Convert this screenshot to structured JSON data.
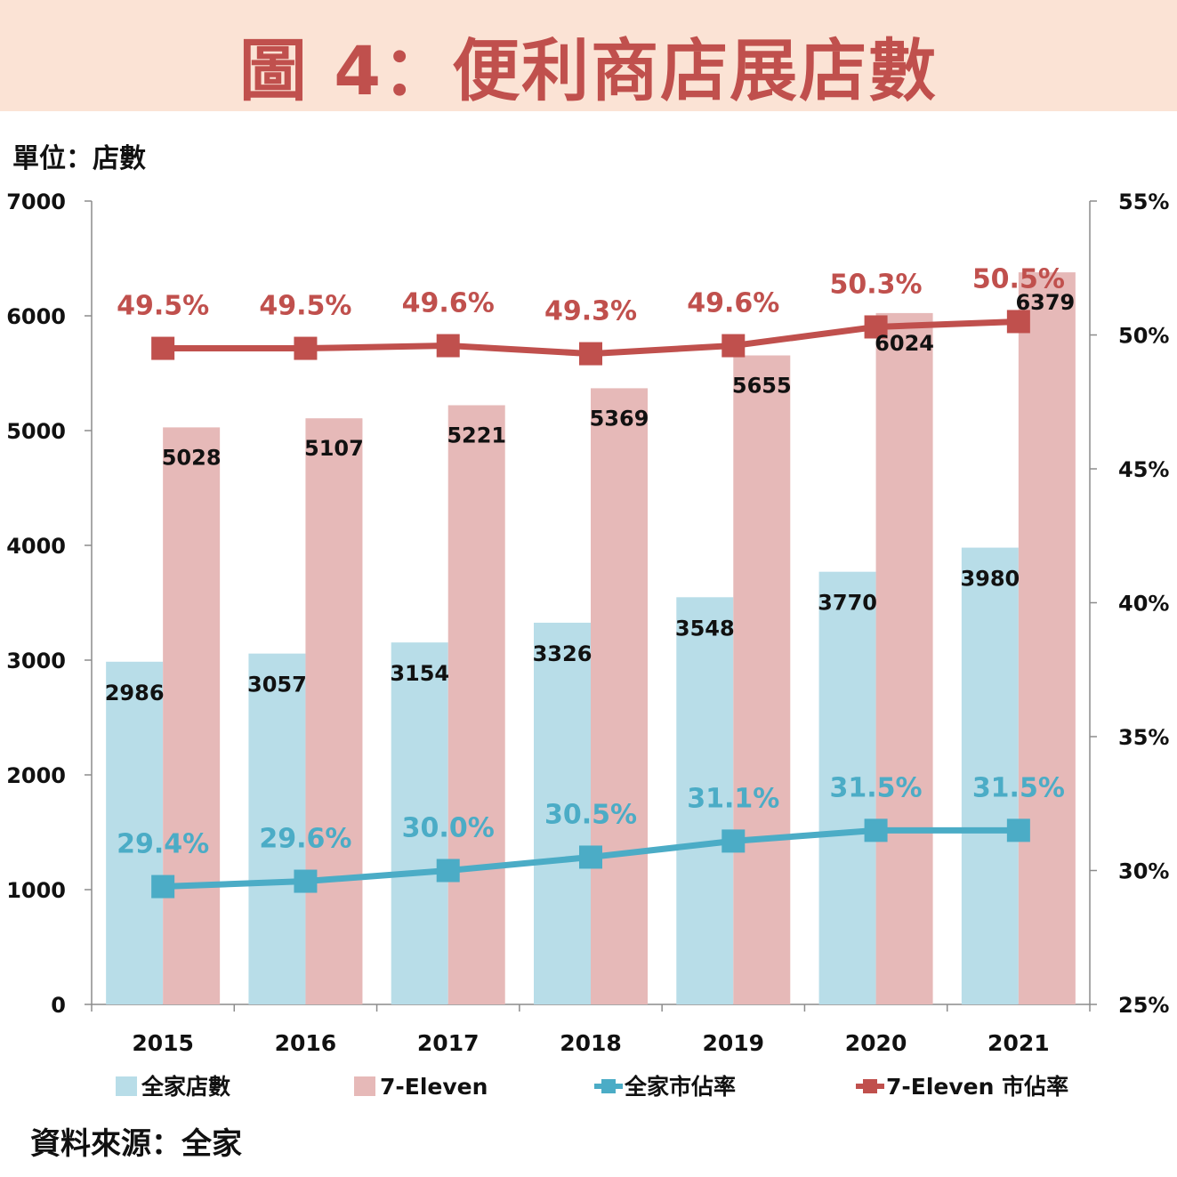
{
  "page": {
    "title": "圖 4：便利商店展店數",
    "unit_label": "單位：店數",
    "source_label": "資料來源：全家"
  },
  "chart_data": {
    "type": "bar",
    "categories": [
      "2015",
      "2016",
      "2017",
      "2018",
      "2019",
      "2020",
      "2021"
    ],
    "series": [
      {
        "name": "全家店數",
        "kind": "bar",
        "axis": "left",
        "color": "#b8dde8",
        "values": [
          2986,
          3057,
          3154,
          3326,
          3548,
          3770,
          3980
        ],
        "labels": [
          "2986",
          "3057",
          "3154",
          "3326",
          "3548",
          "3770",
          "3980"
        ]
      },
      {
        "name": "7-Eleven",
        "kind": "bar",
        "axis": "left",
        "color": "#e6b9b8",
        "values": [
          5028,
          5107,
          5221,
          5369,
          5655,
          6024,
          6379
        ],
        "labels": [
          "5028",
          "5107",
          "5221",
          "5369",
          "5655",
          "6024",
          "6379"
        ]
      },
      {
        "name": "全家市佔率",
        "kind": "line",
        "axis": "right",
        "color": "#4bacc6",
        "values": [
          29.4,
          29.6,
          30.0,
          30.5,
          31.1,
          31.5,
          31.5
        ],
        "labels": [
          "29.4%",
          "29.6%",
          "30.0%",
          "30.5%",
          "31.1%",
          "31.5%",
          "31.5%"
        ]
      },
      {
        "name": "7-Eleven 市佔率",
        "kind": "line",
        "axis": "right",
        "color": "#c0504d",
        "values": [
          49.5,
          49.5,
          49.6,
          49.3,
          49.6,
          50.3,
          50.5
        ],
        "labels": [
          "49.5%",
          "49.5%",
          "49.6%",
          "49.3%",
          "49.6%",
          "50.3%",
          "50.5%"
        ]
      }
    ],
    "y_left": {
      "min": 0,
      "max": 7000,
      "ticks": [
        "0",
        "1000",
        "2000",
        "3000",
        "4000",
        "5000",
        "6000",
        "7000"
      ]
    },
    "y_right": {
      "min": 25,
      "max": 55,
      "ticks": [
        "25%",
        "30%",
        "35%",
        "40%",
        "45%",
        "50%",
        "55%"
      ]
    },
    "grid": false,
    "legend": "bottom"
  }
}
